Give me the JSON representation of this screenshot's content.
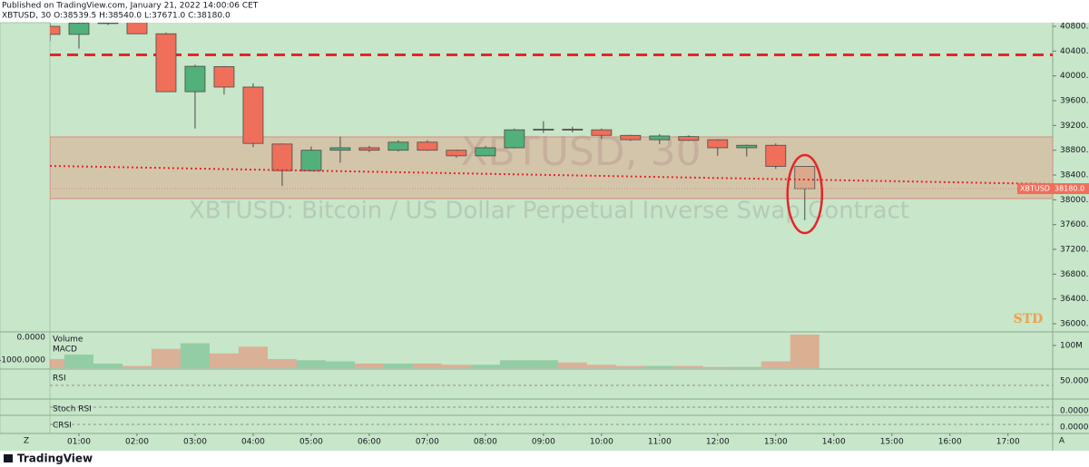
{
  "header": {
    "published": "Published on TradingView.com, January 21, 2022 14:00:06 CET",
    "legend": "XBTUSD, 30  O:38539.5 H:38540.0 L:37671.0 C:38180.0"
  },
  "watermark": {
    "symbol": "XBTUSD, 30",
    "description": "XBTUSD: Bitcoin / US Dollar Perpetual Inverse Swap Contract"
  },
  "chart_data": [
    {
      "type": "candlestick",
      "x": [
        0.5,
        1,
        1.5,
        2,
        2.5,
        3,
        3.5,
        4,
        4.5,
        5,
        5.5,
        6,
        6.5,
        7,
        7.5,
        8,
        8.5,
        9,
        9.5,
        10,
        10.5,
        11,
        11.5,
        12,
        12.5,
        13,
        13.5
      ],
      "open": [
        40800,
        40670,
        40850,
        40900,
        40680,
        39745,
        40150,
        39820,
        38900,
        38470,
        38800,
        38840,
        38800,
        38930,
        38800,
        38710,
        38840,
        39130,
        39140,
        39130,
        39040,
        38970,
        39020,
        38970,
        38840,
        38880,
        38539.5
      ],
      "high": [
        40850,
        40860,
        40900,
        40900,
        40700,
        40180,
        40160,
        39880,
        38910,
        38860,
        39020,
        38870,
        38960,
        38960,
        38810,
        38870,
        39150,
        39270,
        39180,
        39150,
        39050,
        39060,
        39040,
        38980,
        38890,
        38910,
        38540
      ],
      "low": [
        40560,
        40440,
        40820,
        40680,
        39740,
        39150,
        39700,
        38850,
        38225,
        38460,
        38600,
        38770,
        38780,
        38790,
        38680,
        38700,
        38830,
        39080,
        39090,
        38980,
        38950,
        38900,
        38950,
        38710,
        38700,
        38500,
        37671
      ],
      "close": [
        40670,
        40850,
        40860,
        40680,
        39745,
        40155,
        39820,
        38910,
        38470,
        38800,
        38840,
        38800,
        38930,
        38800,
        38710,
        38840,
        39130,
        39140,
        39130,
        39040,
        38970,
        39030,
        38960,
        38840,
        38880,
        38540,
        38180
      ],
      "colors": {
        "up": "#52b07a",
        "down": "#ef6f5a",
        "last": "#dba88c"
      },
      "xlim": [
        0.5,
        17.77
      ],
      "xticks": [
        {
          "value": 1,
          "label": "01:00"
        },
        {
          "value": 2,
          "label": "02:00"
        },
        {
          "value": 3,
          "label": "03:00"
        },
        {
          "value": 4,
          "label": "04:00"
        },
        {
          "value": 5,
          "label": "05:00"
        },
        {
          "value": 6,
          "label": "06:00"
        },
        {
          "value": 7,
          "label": "07:00"
        },
        {
          "value": 8,
          "label": "08:00"
        },
        {
          "value": 9,
          "label": "09:00"
        },
        {
          "value": 10,
          "label": "10:00"
        },
        {
          "value": 11,
          "label": "11:00"
        },
        {
          "value": 12,
          "label": "12:00"
        },
        {
          "value": 13,
          "label": "13:00"
        },
        {
          "value": 14,
          "label": "14:00"
        },
        {
          "value": 15,
          "label": "15:00"
        },
        {
          "value": 16,
          "label": "16:00"
        },
        {
          "value": 17,
          "label": "17:00"
        }
      ],
      "ylim": [
        35883,
        40859
      ],
      "yticks": [
        {
          "value": 40800,
          "label": "40800.0"
        },
        {
          "value": 40400,
          "label": "40400.0"
        },
        {
          "value": 40000,
          "label": "40000.0"
        },
        {
          "value": 39600,
          "label": "39600.0"
        },
        {
          "value": 39200,
          "label": "39200.0"
        },
        {
          "value": 38800,
          "label": "38800.0"
        },
        {
          "value": 38400,
          "label": "38400.0"
        },
        {
          "value": 38000,
          "label": "38000.0"
        },
        {
          "value": 37600,
          "label": "37600.0"
        },
        {
          "value": 37200,
          "label": "37200.0"
        },
        {
          "value": 36800,
          "label": "36800.0"
        },
        {
          "value": 36400,
          "label": "36400.0"
        },
        {
          "value": 36000,
          "label": "36000.0"
        }
      ],
      "resistance": 40340,
      "zone": [
        38020,
        39015
      ],
      "trend_line": {
        "x": [
          0.5,
          17.77
        ],
        "y": [
          38547,
          38254
        ]
      },
      "last_price": {
        "name": "XBTUSD",
        "value": 38180,
        "value_label": "38180.0"
      },
      "annotation": "STD"
    },
    {
      "type": "bar",
      "name": "Volume",
      "values": [
        40000000,
        60000000,
        20000000,
        10000000,
        85000000,
        110000000,
        65000000,
        95000000,
        40000000,
        35000000,
        30000000,
        20000000,
        20000000,
        20000000,
        15000000,
        15000000,
        35000000,
        35000000,
        25000000,
        15000000,
        10000000,
        10000000,
        10000000,
        5000000,
        5000000,
        30000000,
        148000000
      ],
      "ylim": [
        0,
        156000000
      ],
      "yticks": [
        {
          "value": 100000000,
          "label": "100M"
        }
      ]
    }
  ],
  "indicators": [
    {
      "name": "MACD",
      "ticks": [
        "0.0000",
        "-1000.0000"
      ]
    },
    {
      "name": "RSI",
      "ticks": [
        "50.0000"
      ]
    },
    {
      "name": "Stoch RSI",
      "ticks": [
        "0.0000"
      ]
    },
    {
      "name": "CRSI",
      "ticks": [
        "0.0000"
      ]
    }
  ],
  "footer": {
    "scale_left": "Z",
    "scale_right": "A",
    "brand": "TradingView"
  }
}
